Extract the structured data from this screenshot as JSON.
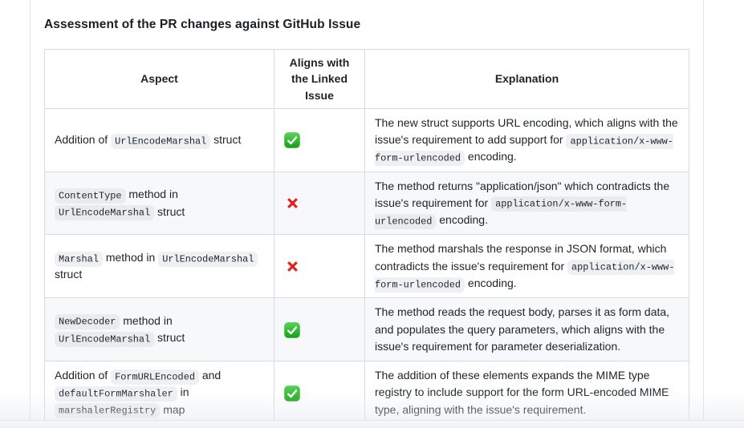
{
  "page": {
    "title": "Assessment of the PR changes against GitHub Issue"
  },
  "table": {
    "headers": [
      "Aspect",
      "Aligns with the Linked Issue",
      "Explanation"
    ],
    "rows": [
      {
        "aspect": [
          {
            "t": "text",
            "v": "Addition of "
          },
          {
            "t": "code",
            "v": "UrlEncodeMarshal"
          },
          {
            "t": "text",
            "v": " struct"
          }
        ],
        "aligns": "yes",
        "explanation": [
          {
            "t": "text",
            "v": "The new struct supports URL encoding, which aligns with the issue's requirement to add support for "
          },
          {
            "t": "code",
            "v": "application/x-www-form-urlencoded"
          },
          {
            "t": "text",
            "v": " encoding."
          }
        ]
      },
      {
        "aspect": [
          {
            "t": "code",
            "v": "ContentType"
          },
          {
            "t": "text",
            "v": " method in "
          },
          {
            "t": "code",
            "v": "UrlEncodeMarshal"
          },
          {
            "t": "text",
            "v": " struct"
          }
        ],
        "aligns": "no",
        "explanation": [
          {
            "t": "text",
            "v": "The method returns \"application/json\" which contradicts the issue's requirement for "
          },
          {
            "t": "code",
            "v": "application/x-www-form-urlencoded"
          },
          {
            "t": "text",
            "v": " encoding."
          }
        ]
      },
      {
        "aspect": [
          {
            "t": "code",
            "v": "Marshal"
          },
          {
            "t": "text",
            "v": " method in "
          },
          {
            "t": "code",
            "v": "UrlEncodeMarshal"
          },
          {
            "t": "text",
            "v": " struct"
          }
        ],
        "aligns": "no",
        "explanation": [
          {
            "t": "text",
            "v": "The method marshals the response in JSON format, which contradicts the issue's requirement for "
          },
          {
            "t": "code",
            "v": "application/x-www-form-urlencoded"
          },
          {
            "t": "text",
            "v": " encoding."
          }
        ]
      },
      {
        "aspect": [
          {
            "t": "code",
            "v": "NewDecoder"
          },
          {
            "t": "text",
            "v": " method in "
          },
          {
            "t": "code",
            "v": "UrlEncodeMarshal"
          },
          {
            "t": "text",
            "v": " struct"
          }
        ],
        "aligns": "yes",
        "explanation": [
          {
            "t": "text",
            "v": "The method reads the request body, parses it as form data, and populates the query parameters, which aligns with the issue's requirement for parameter deserialization."
          }
        ]
      },
      {
        "aspect": [
          {
            "t": "text",
            "v": "Addition of "
          },
          {
            "t": "code",
            "v": "FormURLEncoded"
          },
          {
            "t": "text",
            "v": " and "
          },
          {
            "t": "code",
            "v": "defaultFormMarshaler"
          },
          {
            "t": "text",
            "v": " in "
          },
          {
            "t": "code",
            "v": "marshalerRegistry"
          },
          {
            "t": "text",
            "v": " map"
          }
        ],
        "aligns": "yes",
        "explanation": [
          {
            "t": "text",
            "v": "The addition of these elements expands the MIME type registry to include support for the form URL-encoded MIME type, aligning with the issue's requirement."
          }
        ]
      }
    ]
  },
  "icons": {
    "yes": "check-mark-button-icon",
    "no": "cross-mark-icon"
  },
  "colors": {
    "check_green": "#2db52d",
    "check_green_light": "#5ad45a",
    "check_green_dark": "#13a013",
    "cross_red": "#e3201b",
    "row_alt_bg": "#f6f8fa",
    "table_border": "#d4dbe1",
    "code_bg": "#eef0f3",
    "text": "#1f2328"
  }
}
